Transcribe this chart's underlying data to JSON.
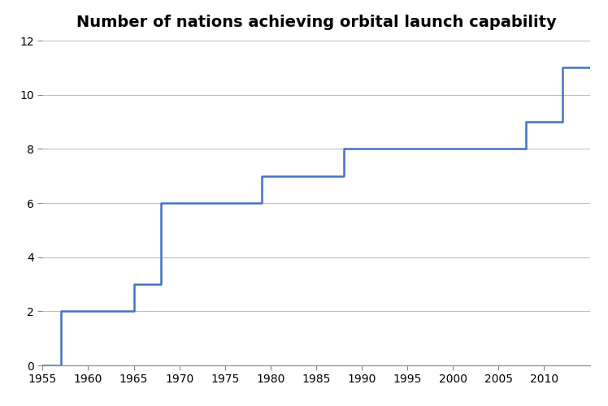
{
  "title": "Number of nations achieving orbital launch capability",
  "line_color": "#4472C4",
  "line_width": 1.8,
  "background_color": "#ffffff",
  "xlim": [
    1955,
    2015
  ],
  "ylim": [
    0,
    12
  ],
  "yticks": [
    0,
    2,
    4,
    6,
    8,
    10,
    12
  ],
  "xticks": [
    1955,
    1960,
    1965,
    1970,
    1975,
    1980,
    1985,
    1990,
    1995,
    2000,
    2005,
    2010
  ],
  "grid_color": "#BFBFBF",
  "title_fontsize": 14,
  "step_data": [
    [
      1955,
      0
    ],
    [
      1957,
      0
    ],
    [
      1957,
      2
    ],
    [
      1965,
      2
    ],
    [
      1965,
      3
    ],
    [
      1968,
      3
    ],
    [
      1968,
      6
    ],
    [
      1979,
      6
    ],
    [
      1979,
      7
    ],
    [
      1988,
      7
    ],
    [
      1988,
      8
    ],
    [
      2008,
      8
    ],
    [
      2008,
      9
    ],
    [
      2012,
      9
    ],
    [
      2012,
      11
    ],
    [
      2015,
      11
    ]
  ]
}
